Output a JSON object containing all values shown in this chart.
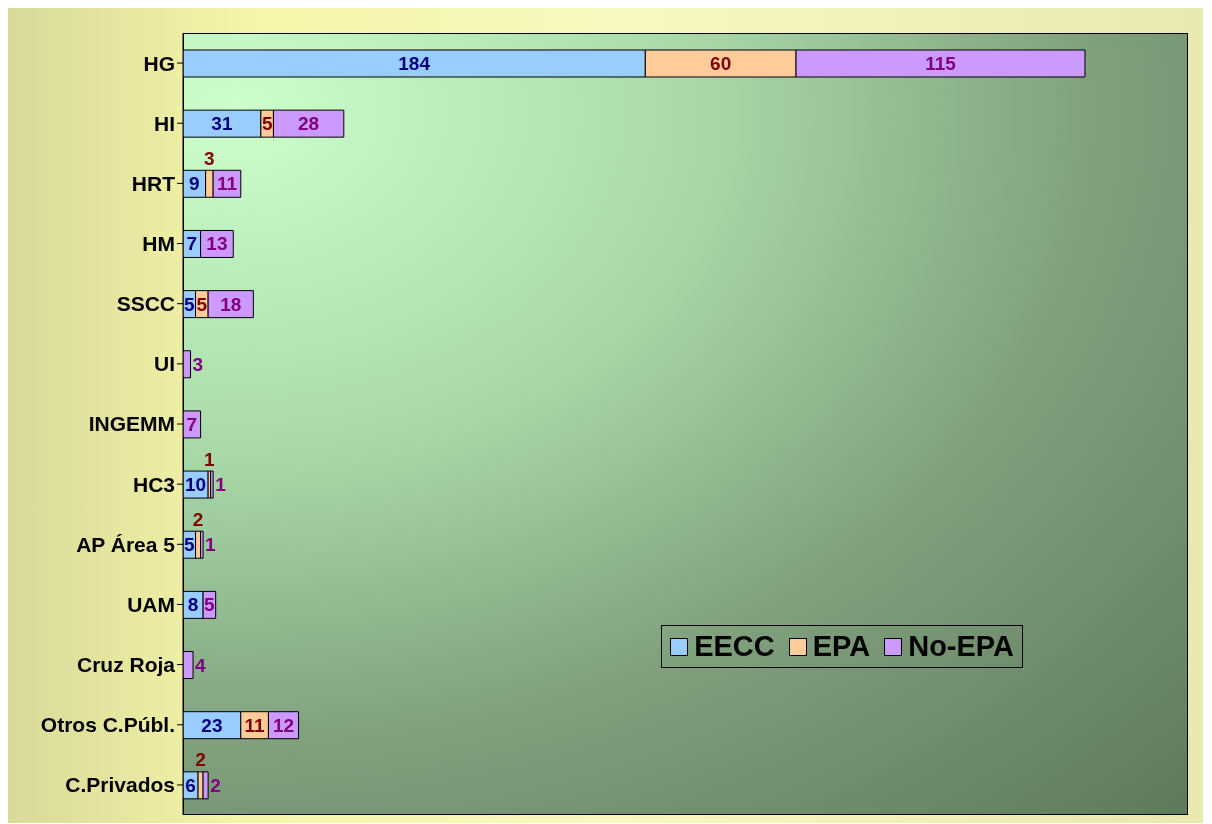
{
  "chart_data": {
    "type": "bar",
    "orientation": "horizontal",
    "stacked": true,
    "data_labels": true,
    "legend": "bottom right",
    "grid": false,
    "tick_labels": "y",
    "xlim": [
      0,
      400
    ],
    "categories": [
      "HG",
      "HI",
      "HRT",
      "HM",
      "SSCC",
      "UI",
      "INGEMM",
      "HC3",
      "AP Área 5",
      "UAM",
      "Cruz Roja",
      "Otros C.Públ.",
      "C.Privados"
    ],
    "series": [
      {
        "name": "EECC",
        "color": "#99ccff",
        "values": [
          184,
          31,
          9,
          7,
          5,
          null,
          null,
          10,
          5,
          8,
          null,
          23,
          6
        ]
      },
      {
        "name": "EPA",
        "color": "#ffcc99",
        "values": [
          60,
          5,
          3,
          null,
          5,
          null,
          null,
          1,
          2,
          null,
          null,
          11,
          2
        ]
      },
      {
        "name": "No-EPA",
        "color": "#cc99ff",
        "values": [
          115,
          28,
          11,
          13,
          18,
          3,
          7,
          1,
          1,
          5,
          4,
          12,
          2
        ]
      }
    ]
  }
}
